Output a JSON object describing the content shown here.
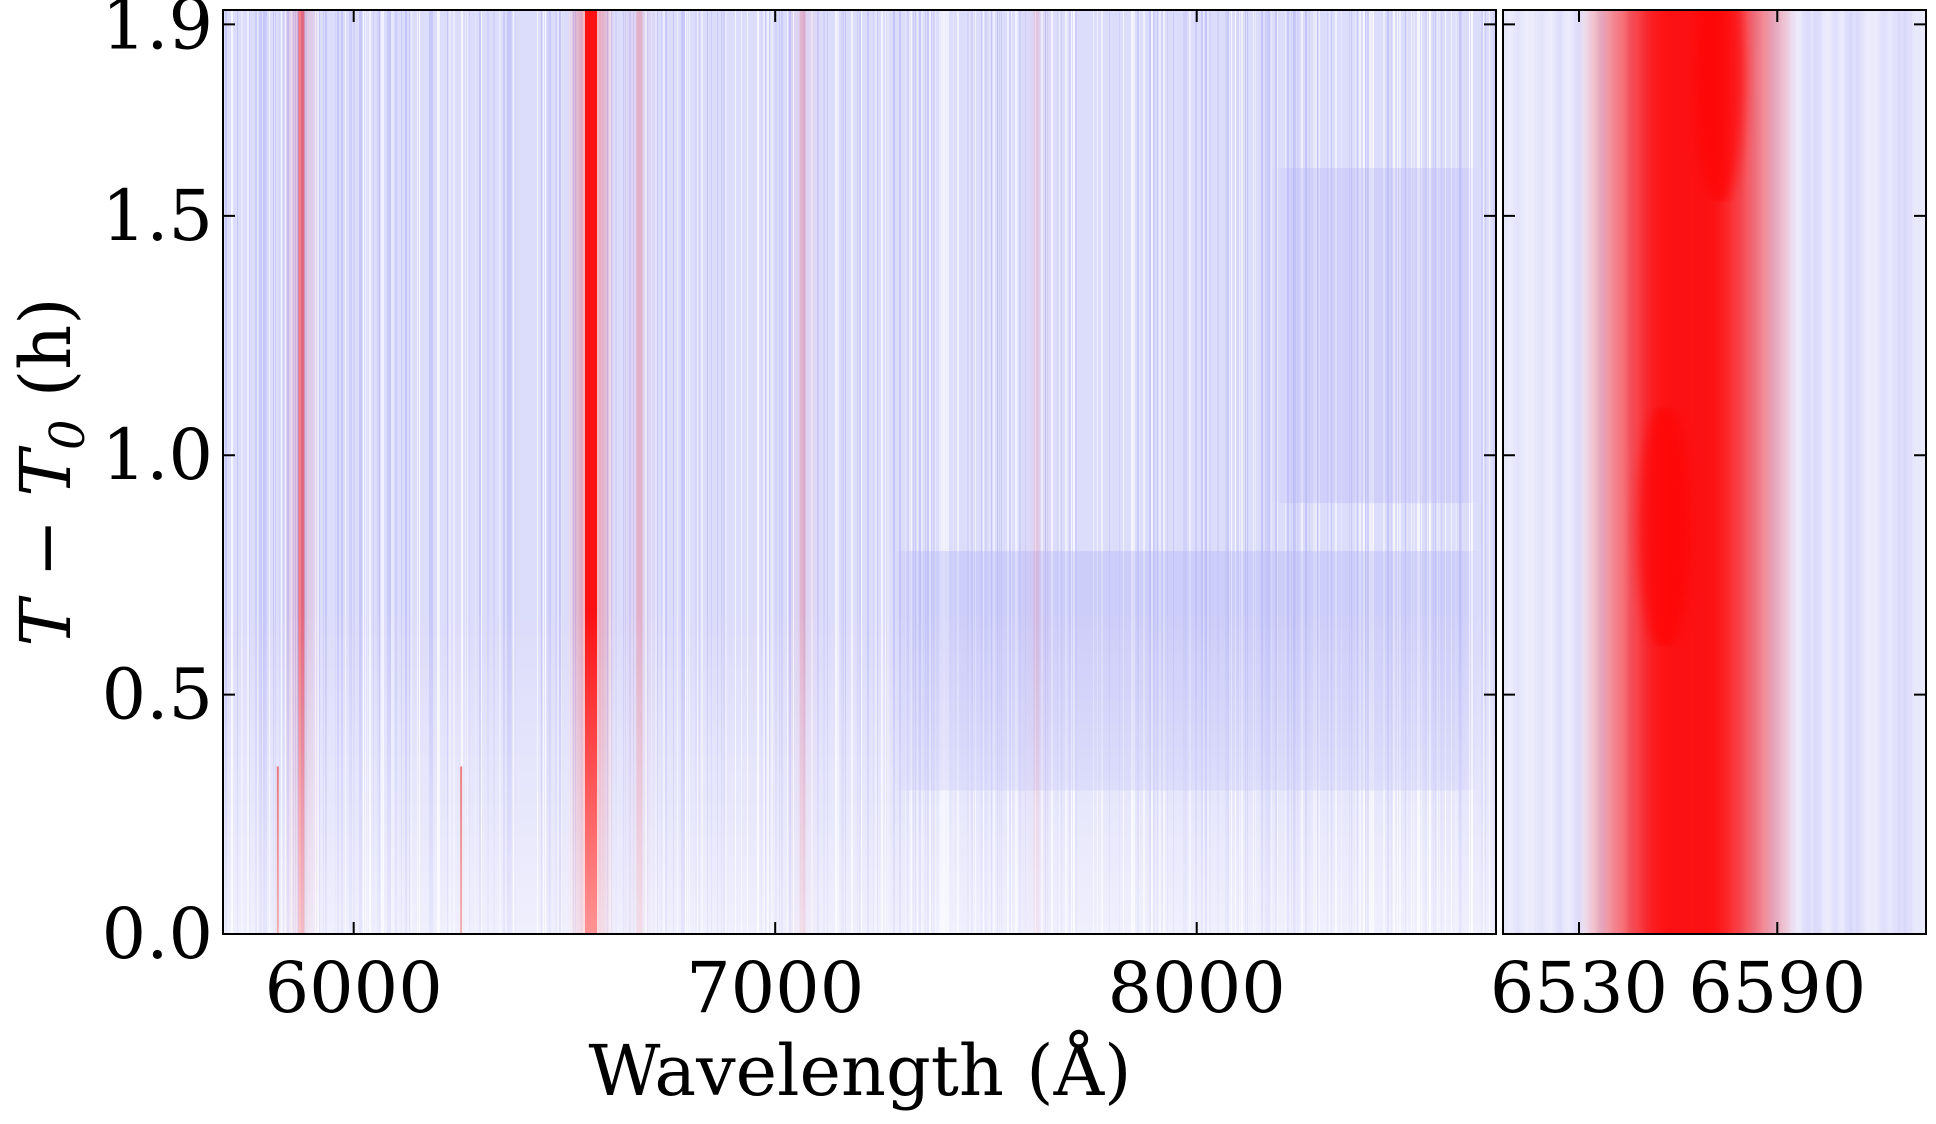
{
  "chart_data": [
    {
      "type": "heatmap",
      "panel": "full-spectrum",
      "xlabel": "Wavelength (Å)",
      "ylabel": "T − T",
      "ylabel_subscript": "0",
      "ylabel_unit": " (h)",
      "xlim": [
        5690,
        8710
      ],
      "ylim": [
        0.0,
        1.93
      ],
      "xticks": [
        6000,
        7000,
        8000
      ],
      "xtick_labels": [
        "6000",
        "7000",
        "8000"
      ],
      "yticks": [
        0.0,
        0.5,
        1.0,
        1.5,
        1.9
      ],
      "ytick_labels": [
        "0.0",
        "0.5",
        "1.0",
        "1.5",
        "1.9"
      ],
      "colormap": "bwr",
      "emission_lines_angstrom": [
        {
          "wavelength": 5876,
          "strength": 0.45
        },
        {
          "wavelength": 6563,
          "strength": 1.0
        },
        {
          "wavelength": 6678,
          "strength": 0.18
        },
        {
          "wavelength": 7065,
          "strength": 0.15
        },
        {
          "wavelength": 7620,
          "strength": 0.08
        }
      ],
      "short_features": [
        {
          "wavelength": 5820,
          "t_end": 0.35
        },
        {
          "wavelength": 6255,
          "t_end": 0.35
        }
      ]
    },
    {
      "type": "heatmap",
      "panel": "h-alpha-zoom",
      "xlim": [
        6507,
        6635
      ],
      "ylim": [
        0.0,
        1.93
      ],
      "xticks": [
        6530,
        6590
      ],
      "xtick_labels": [
        "6530",
        "6590"
      ],
      "colormap": "bwr",
      "line_center_angstrom": 6563
    }
  ],
  "colors": {
    "emission": "#ff0000",
    "absorption": "#8c8cff",
    "neutral": "#ffffff"
  }
}
